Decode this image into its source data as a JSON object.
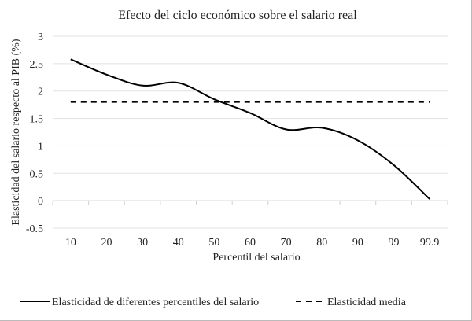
{
  "chart_data": {
    "type": "line",
    "title": "Efecto del ciclo económico sobre el salario real",
    "xlabel": "Percentil del salario",
    "ylabel": "Elasticidad del salario respecto al PIB (%)",
    "categories": [
      "10",
      "20",
      "30",
      "40",
      "50",
      "60",
      "70",
      "80",
      "90",
      "99",
      "99.9"
    ],
    "ylim": [
      -0.5,
      3
    ],
    "yticks": [
      "3",
      "2.5",
      "2",
      "1.5",
      "1",
      "0.5",
      "0",
      "-0.5"
    ],
    "grid": true,
    "legend_position": "bottom",
    "series": [
      {
        "name": "Elasticidad de diferentes percentiles del salario",
        "style": "solid",
        "color": "#000000",
        "values": [
          2.58,
          2.3,
          2.1,
          2.15,
          1.85,
          1.6,
          1.3,
          1.33,
          1.1,
          0.65,
          0.03
        ]
      },
      {
        "name": "Elasticidad media",
        "style": "dashed",
        "color": "#000000",
        "values": [
          1.8,
          1.8,
          1.8,
          1.8,
          1.8,
          1.8,
          1.8,
          1.8,
          1.8,
          1.8,
          1.8
        ]
      }
    ]
  }
}
